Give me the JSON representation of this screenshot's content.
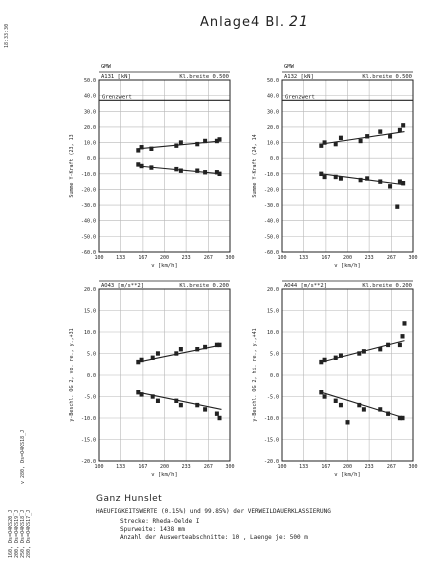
{
  "page": {
    "title": "Anlage4 Bl.",
    "sheet_number": "21",
    "side_top": "18:33:30",
    "side_mid": "v 280, Ds=O4KS18_J",
    "side_bottom": [
      "160, Ds=O4KS20_J",
      "200, Ds=O4KS19_J",
      "250, Ds=O4KS18_J",
      "280, Ds=O4KS17_J"
    ]
  },
  "footer": {
    "company": "Ganz Hunslet",
    "title": "HAEUFIGKEITSWERTE (0.15%) und 99.85%) der VERWEILDAUERKLASSIERUNG",
    "strecke": "Strecke: Rheda-Oelde I",
    "spurweite": "Spurweite: 1438 mm",
    "anzahl": "Anzahl der Auswerteabschnitte:    10 , Laenge je:   500 m"
  },
  "colors": {
    "ink": "#222222",
    "grid": "#b8b8b8"
  },
  "chart_data": [
    {
      "type": "scatter",
      "header_left": "GMW",
      "header_sub": "A131 [kN]",
      "header_right": "Kl.breite  0.500",
      "limit_label": "Grenzwert",
      "limit_value": 37,
      "ylabel": "Summe Y-Kraft (23, 13",
      "xlabel": "v [km/h]",
      "xlim": [
        100,
        300
      ],
      "ylim": [
        -60,
        50
      ],
      "xticks": [
        100,
        133,
        167,
        200,
        233,
        267,
        300
      ],
      "xticklabels": [
        "100",
        "133",
        "167",
        "200",
        "233",
        "267",
        "300"
      ],
      "yticks": [
        50,
        40,
        30,
        20,
        10,
        0,
        -10,
        -20,
        -30,
        -40,
        -50,
        -60
      ],
      "yticklabels": [
        "50.0",
        "40.0",
        "30.0",
        "20.0",
        "10.0",
        "0.0",
        "-10.0",
        "-20.0",
        "-30.0",
        "-40.0",
        "-50.0",
        "-60.0"
      ],
      "series": [
        {
          "x": [
            160,
            165,
            180,
            218,
            225,
            250,
            262,
            280,
            284
          ],
          "y": [
            5,
            7,
            6,
            8,
            10,
            9,
            11,
            11,
            12
          ],
          "trend": [
            [
              160,
              6
            ],
            [
              287,
              11
            ]
          ]
        },
        {
          "x": [
            160,
            165,
            180,
            218,
            225,
            250,
            262,
            280,
            284
          ],
          "y": [
            -4,
            -5,
            -6,
            -7,
            -8,
            -8,
            -9,
            -9,
            -10
          ],
          "trend": [
            [
              160,
              -5
            ],
            [
              287,
              -10
            ]
          ]
        }
      ]
    },
    {
      "type": "scatter",
      "header_left": "GMW",
      "header_sub": "A132 [kN]",
      "header_right": "Kl.breite  0.500",
      "limit_label": "Grenzwert",
      "limit_value": 37,
      "ylabel": "Summe Y-Kraft (24, 14",
      "xlabel": "v [km/h]",
      "xlim": [
        100,
        300
      ],
      "ylim": [
        -60,
        50
      ],
      "xticks": [
        100,
        133,
        167,
        200,
        233,
        267,
        300
      ],
      "xticklabels": [
        "100",
        "133",
        "167",
        "200",
        "233",
        "267",
        "300"
      ],
      "yticks": [
        50,
        40,
        30,
        20,
        10,
        0,
        -10,
        -20,
        -30,
        -40,
        -50,
        -60
      ],
      "yticklabels": [
        "50.0",
        "40.0",
        "30.0",
        "20.0",
        "10.0",
        "0.0",
        "-10.0",
        "-20.0",
        "-30.0",
        "-40.0",
        "-50.0",
        "-60.0"
      ],
      "series": [
        {
          "x": [
            160,
            165,
            182,
            190,
            220,
            230,
            250,
            265,
            280,
            285
          ],
          "y": [
            8,
            10,
            9,
            13,
            11,
            14,
            17,
            14,
            18,
            21
          ],
          "trend": [
            [
              160,
              9
            ],
            [
              287,
              17
            ]
          ]
        },
        {
          "x": [
            160,
            165,
            182,
            190,
            220,
            230,
            250,
            265,
            280,
            285,
            276
          ],
          "y": [
            -10,
            -12,
            -12,
            -13,
            -14,
            -13,
            -15,
            -18,
            -15,
            -16,
            -31
          ],
          "trend": [
            [
              160,
              -10
            ],
            [
              287,
              -17
            ]
          ]
        }
      ]
    },
    {
      "type": "scatter",
      "header_left": "",
      "header_sub": "AO43 [m/s**2]",
      "header_right": "Kl.breite  0.200",
      "limit_label": "",
      "limit_value": null,
      "ylabel": "y-Beschl. OG 2, vo. re., y.,+31",
      "xlabel": "v [km/h]",
      "xlim": [
        100,
        300
      ],
      "ylim": [
        -20,
        20
      ],
      "xticks": [
        100,
        133,
        167,
        200,
        233,
        267,
        300
      ],
      "xticklabels": [
        "100",
        "133",
        "167",
        "200",
        "233",
        "267",
        "300"
      ],
      "yticks": [
        20,
        15,
        10,
        5,
        0,
        -5,
        -10,
        -15,
        -20
      ],
      "yticklabels": [
        "20.0",
        "15.0",
        "10.0",
        "5.0",
        "0.0",
        "-5.0",
        "-10.0",
        "-15.0",
        "-20.0"
      ],
      "series": [
        {
          "x": [
            160,
            165,
            182,
            190,
            218,
            225,
            250,
            262,
            280,
            284
          ],
          "y": [
            3,
            3.5,
            4,
            5,
            5,
            6,
            6,
            6.5,
            7,
            7
          ],
          "trend": [
            [
              160,
              3
            ],
            [
              287,
              7
            ]
          ]
        },
        {
          "x": [
            160,
            165,
            182,
            190,
            218,
            225,
            250,
            262,
            280,
            284
          ],
          "y": [
            -4,
            -4.5,
            -5,
            -6,
            -6,
            -7,
            -7,
            -8,
            -9,
            -10
          ],
          "trend": [
            [
              160,
              -4
            ],
            [
              287,
              -8
            ]
          ]
        }
      ]
    },
    {
      "type": "scatter",
      "header_left": "",
      "header_sub": "AO44 [m/s**2]",
      "header_right": "Kl.breite  0.200",
      "limit_label": "",
      "limit_value": null,
      "ylabel": "y-Beschl. OG 2, hi. re., y.,+41",
      "xlabel": "v [km/h]",
      "xlim": [
        100,
        300
      ],
      "ylim": [
        -20,
        20
      ],
      "xticks": [
        100,
        133,
        167,
        200,
        233,
        267,
        300
      ],
      "xticklabels": [
        "100",
        "133",
        "167",
        "200",
        "233",
        "267",
        "300"
      ],
      "yticks": [
        20,
        15,
        10,
        5,
        0,
        -5,
        -10,
        -15,
        -20
      ],
      "yticklabels": [
        "20.0",
        "15.0",
        "10.0",
        "5.0",
        "0.0",
        "-5.0",
        "-10.0",
        "-15.0",
        "-20.0"
      ],
      "series": [
        {
          "x": [
            160,
            165,
            182,
            190,
            218,
            225,
            250,
            262,
            280,
            284,
            287
          ],
          "y": [
            3,
            3.5,
            4,
            4.5,
            5,
            5.5,
            6,
            7,
            7,
            9,
            12
          ],
          "trend": [
            [
              160,
              3
            ],
            [
              287,
              8
            ]
          ]
        },
        {
          "x": [
            160,
            165,
            182,
            190,
            218,
            225,
            250,
            262,
            280,
            284,
            200
          ],
          "y": [
            -4,
            -5,
            -6,
            -7,
            -7,
            -8,
            -8,
            -9,
            -10,
            -10,
            -11
          ],
          "trend": [
            [
              160,
              -4
            ],
            [
              287,
              -10
            ]
          ]
        }
      ]
    }
  ]
}
